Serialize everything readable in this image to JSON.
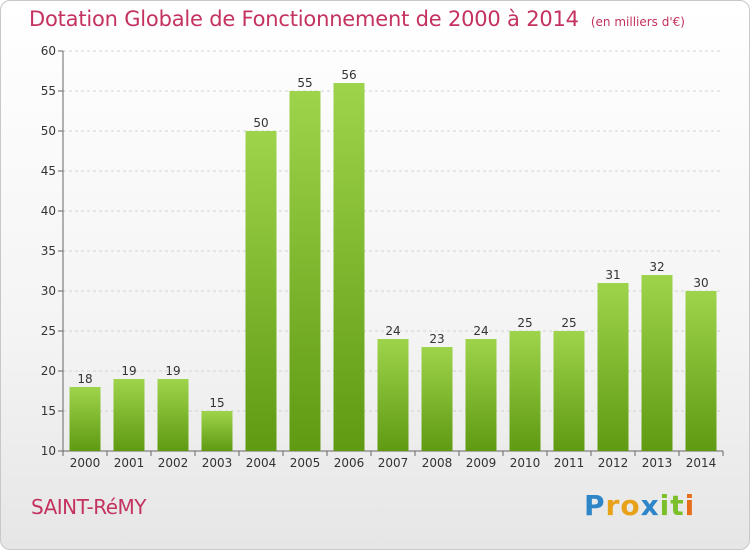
{
  "header": {
    "title": "Dotation Globale de Fonctionnement de 2000 à 2014",
    "subtitle": "(en milliers d'€)"
  },
  "footer": {
    "commune": "SAINT-RéMY",
    "logo": {
      "letters": [
        "P",
        "r",
        "o",
        "x",
        "i",
        "t",
        "i"
      ],
      "colors": [
        "#2e86c9",
        "#e8a21a",
        "#e8a21a",
        "#2e86c9",
        "#7bbf2a",
        "#7bbf2a",
        "#e86d1a"
      ]
    }
  },
  "colors": {
    "bar_light": "#9ed44c",
    "bar_dark": "#5f9a12",
    "accent": "#c4325f"
  },
  "chart_data": {
    "type": "bar",
    "title": "Dotation Globale de Fonctionnement de 2000 à 2014",
    "subtitle": "(en milliers d'€)",
    "categories": [
      "2000",
      "2001",
      "2002",
      "2003",
      "2004",
      "2005",
      "2006",
      "2007",
      "2008",
      "2009",
      "2010",
      "2011",
      "2012",
      "2013",
      "2014"
    ],
    "values": [
      18,
      19,
      19,
      15,
      50,
      55,
      56,
      24,
      23,
      24,
      25,
      25,
      31,
      32,
      30
    ],
    "ylim": [
      10,
      60
    ],
    "yticks": [
      10,
      15,
      20,
      25,
      30,
      35,
      40,
      45,
      50,
      55,
      60
    ],
    "grid": true,
    "legend": "none"
  }
}
